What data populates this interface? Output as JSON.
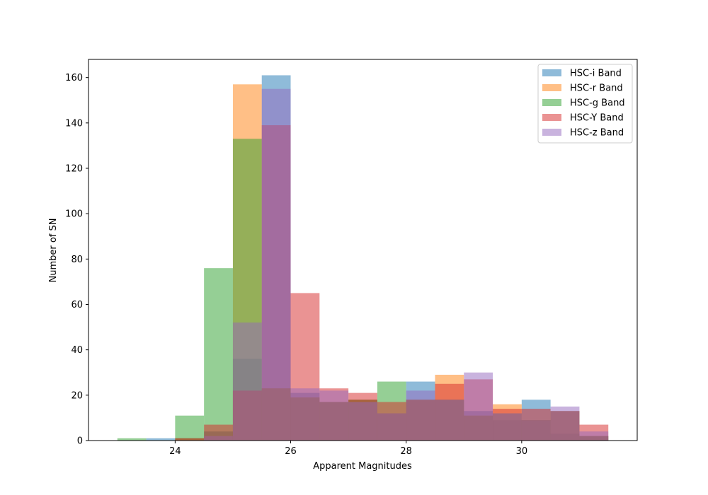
{
  "chart_data": {
    "type": "histogram",
    "title": "",
    "xlabel": "Apparent Magnitudes",
    "ylabel": "Number of SN",
    "xlim": [
      22.5,
      32.0
    ],
    "ylim": [
      0,
      168
    ],
    "xticks": [
      24,
      26,
      28,
      30
    ],
    "yticks": [
      0,
      20,
      40,
      60,
      80,
      100,
      120,
      140,
      160
    ],
    "bin_edges": [
      23.0,
      23.5,
      24.0,
      24.5,
      25.0,
      25.5,
      26.0,
      26.5,
      27.0,
      27.5,
      28.0,
      28.5,
      29.0,
      29.5,
      30.0,
      30.5,
      31.0,
      31.5
    ],
    "bar_alpha": 0.5,
    "legend_position": "top-right",
    "series": [
      {
        "name": "HSC-i Band",
        "color": "#1f77b4",
        "values": [
          0,
          1,
          1,
          4,
          36,
          161,
          21,
          17,
          18,
          12,
          26,
          18,
          13,
          9,
          18,
          3,
          2
        ]
      },
      {
        "name": "HSC-r Band",
        "color": "#ff7f0e",
        "values": [
          0,
          0,
          1,
          2,
          157,
          23,
          19,
          17,
          18,
          12,
          18,
          29,
          11,
          16,
          9,
          13,
          2
        ]
      },
      {
        "name": "HSC-g Band",
        "color": "#2ca02c",
        "values": [
          1,
          0,
          11,
          76,
          133,
          23,
          19,
          17,
          18,
          26,
          18,
          18,
          11,
          12,
          9,
          13,
          2
        ]
      },
      {
        "name": "HSC-Y Band",
        "color": "#d62728",
        "values": [
          0,
          0,
          1,
          7,
          22,
          139,
          65,
          23,
          21,
          17,
          18,
          25,
          27,
          14,
          14,
          13,
          7
        ]
      },
      {
        "name": "HSC-z Band",
        "color": "#9467bd",
        "values": [
          0,
          0,
          0,
          2,
          52,
          155,
          23,
          22,
          17,
          12,
          22,
          18,
          30,
          12,
          9,
          15,
          4
        ]
      }
    ]
  }
}
